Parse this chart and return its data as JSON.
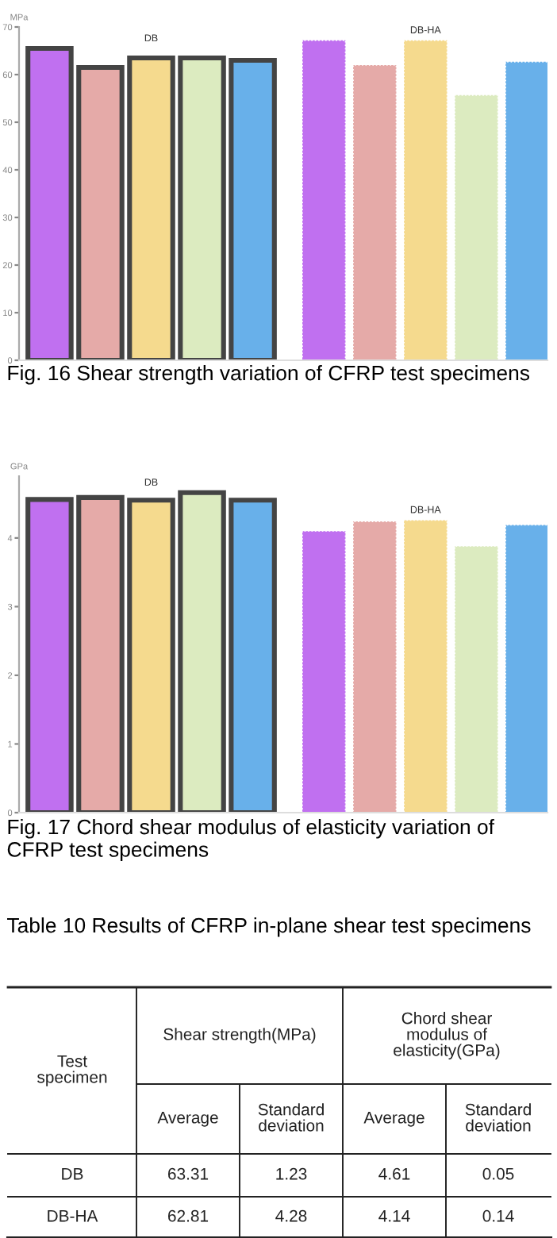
{
  "chart_data": [
    {
      "type": "bar",
      "title": "Fig. 16 Shear strength variation of CFRP test specimens",
      "ylabel": "MPa",
      "categories": [
        null,
        null,
        null,
        null,
        null,
        null,
        null,
        null,
        null,
        null
      ],
      "series": [
        {
          "name": "DB",
          "colors": [
            "#c070f0",
            "#e5aaa8",
            "#f5da8e",
            "#dcebc0",
            "#68b0ea",
            null,
            null,
            null,
            null,
            null
          ],
          "values": [
            65.5,
            61.5,
            63.5,
            63.5,
            63,
            null,
            null,
            null,
            null,
            null
          ]
        },
        {
          "name": "DB-HA",
          "colors": [
            null,
            null,
            null,
            null,
            null,
            "#c070f0",
            "#e5aaa8",
            "#f5da8e",
            "#dcebc0",
            "#68b0ea"
          ],
          "values": [
            null,
            null,
            null,
            null,
            null,
            67.2,
            62,
            67.2,
            55.7,
            62.7
          ]
        }
      ],
      "ylim": [
        0,
        70
      ],
      "yticks": [
        0,
        10,
        20,
        30,
        40,
        50,
        60,
        70
      ],
      "grid": false,
      "legend": false
    },
    {
      "type": "bar",
      "title": "Fig. 17 Chord shear modulus of elasticity variation of CFRP test specimens",
      "ylabel": "GPa",
      "categories": [
        null,
        null,
        null,
        null,
        null,
        null,
        null,
        null,
        null,
        null
      ],
      "series": [
        {
          "name": "DB",
          "colors": [
            "#c070f0",
            "#e5aaa8",
            "#f5da8e",
            "#dcebc0",
            "#68b0ea",
            null,
            null,
            null,
            null,
            null
          ],
          "values": [
            4.56,
            4.59,
            4.55,
            4.66,
            4.55,
            null,
            null,
            null,
            null,
            null
          ]
        },
        {
          "name": "DB-HA",
          "colors": [
            null,
            null,
            null,
            null,
            null,
            "#c070f0",
            "#e5aaa8",
            "#f5da8e",
            "#dcebc0",
            "#68b0ea"
          ],
          "values": [
            null,
            null,
            null,
            null,
            null,
            4.1,
            4.24,
            4.26,
            3.88,
            4.19
          ]
        }
      ],
      "ylim": [
        0,
        4.9
      ],
      "yticks": [
        0,
        1,
        2,
        3,
        4
      ],
      "grid": false,
      "legend": false
    },
    {
      "type": "other",
      "title": "Table 10 Results of CFRP in-plane shear test specimens",
      "annotations": [
        "Test\nspecimen",
        "Shear strength(MPa)",
        "Chord shear\nmodulus of\nelasticity(GPa)",
        "Average",
        "Standard\ndeviation",
        "Average",
        "Standard\ndeviation",
        "DB",
        "63.31",
        "1.23",
        "4.61",
        "0.05",
        "DB-HA",
        "62.81",
        "4.28",
        "4.14",
        "0.14"
      ]
    }
  ]
}
